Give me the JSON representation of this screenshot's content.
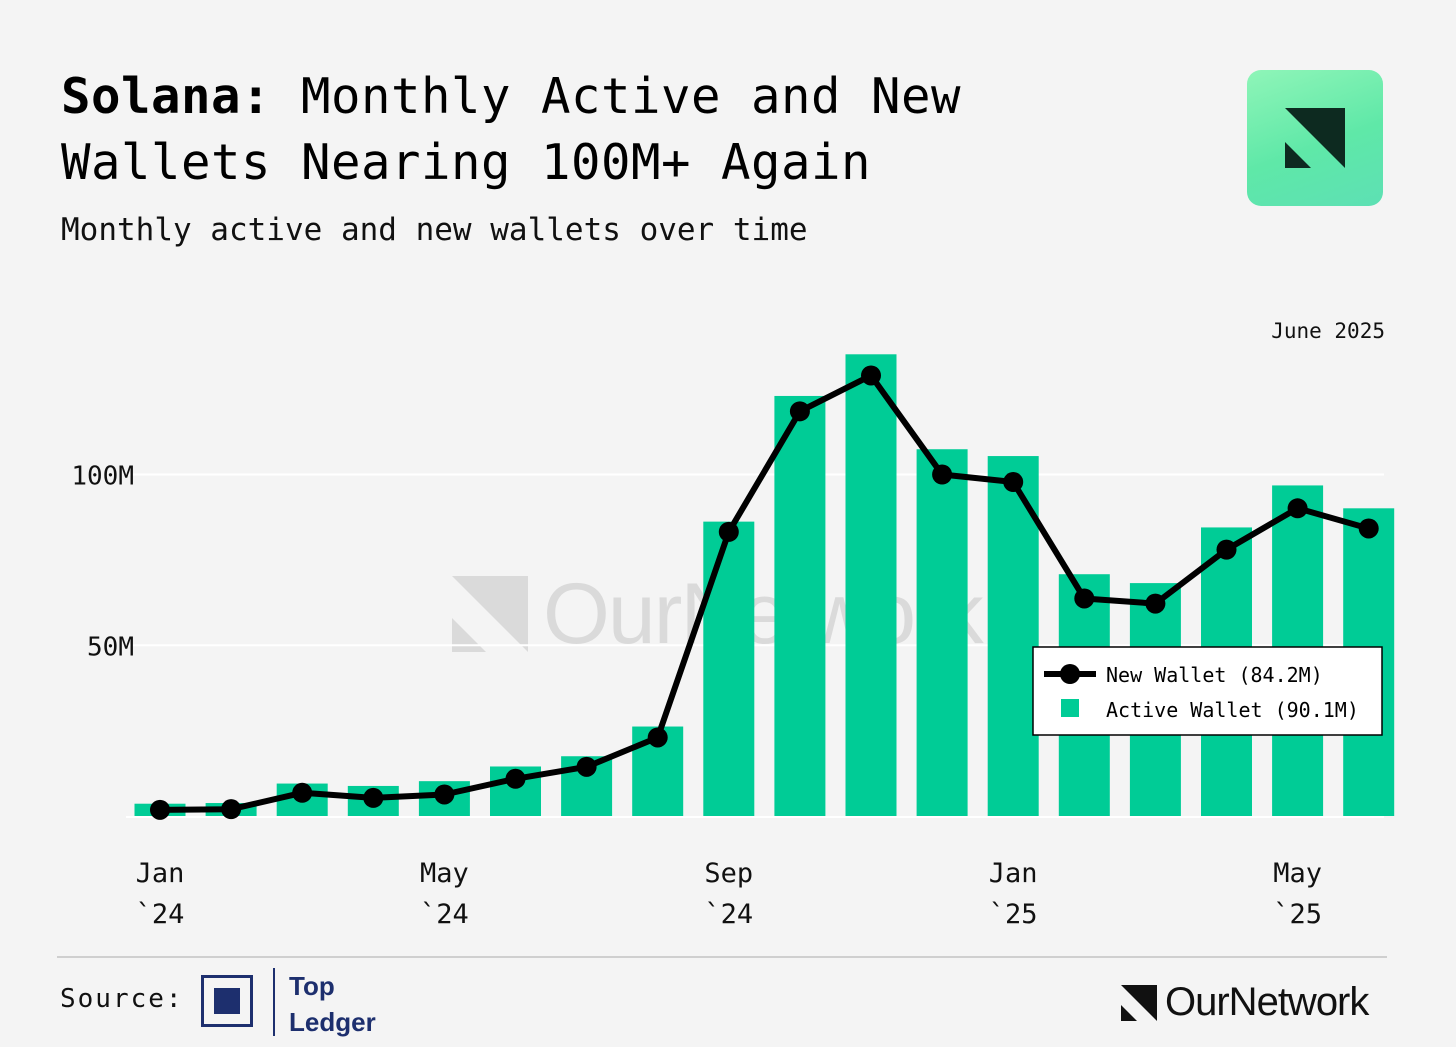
{
  "header": {
    "title_bold": "Solana:",
    "title_rest": " Monthly Active and New Wallets Nearing 100M+ Again",
    "subtitle": "Monthly active and new wallets over time"
  },
  "chart_data": {
    "type": "bar",
    "title": "Solana: Monthly Active and New Wallets Nearing 100M+ Again",
    "subtitle": "Monthly active and new wallets over time",
    "date_note": "June 2025",
    "watermark": "OurNetwork",
    "categories": [
      "Jan 2024",
      "Feb 2024",
      "Mar 2024",
      "Apr 2024",
      "May 2024",
      "Jun 2024",
      "Jul 2024",
      "Aug 2024",
      "Sep 2024",
      "Oct 2024",
      "Nov 2024",
      "Dec 2024",
      "Jan 2025",
      "Feb 2025",
      "Mar 2025",
      "Apr 2025",
      "May 2025",
      "Jun 2025"
    ],
    "x_ticks": [
      {
        "index": 0,
        "line1": "Jan",
        "line2": "`24"
      },
      {
        "index": 4,
        "line1": "May",
        "line2": "`24"
      },
      {
        "index": 8,
        "line1": "Sep",
        "line2": "`24"
      },
      {
        "index": 12,
        "line1": "Jan",
        "line2": "`25"
      },
      {
        "index": 16,
        "line1": "May",
        "line2": "`25"
      }
    ],
    "y_ticks": [
      {
        "value": 50,
        "label": "50M"
      },
      {
        "value": 100,
        "label": "100M"
      }
    ],
    "ylim": [
      0,
      140
    ],
    "grid": true,
    "unit": "M",
    "series": [
      {
        "name": "Active Wallet",
        "kind": "bar",
        "legend_label": "Active Wallet (90.1M)",
        "color": "#00cc96",
        "values": [
          3.6,
          3.8,
          9.5,
          8.8,
          10.2,
          14.5,
          17.5,
          26.2,
          86.2,
          123.0,
          135.2,
          107.4,
          105.4,
          70.8,
          68.2,
          84.5,
          96.8,
          90.1
        ]
      },
      {
        "name": "New Wallet",
        "kind": "line",
        "legend_label": "New Wallet (84.2M)",
        "color": "#000000",
        "values": [
          1.8,
          2.0,
          6.8,
          5.3,
          6.3,
          10.9,
          14.4,
          23.0,
          83.2,
          118.5,
          129.0,
          100.0,
          97.8,
          63.7,
          62.2,
          78.0,
          90.1,
          84.2
        ]
      }
    ],
    "legend_position": "center-right"
  },
  "footer": {
    "source_label": "Source:",
    "source_name_line1": "Top",
    "source_name_line2": "Ledger",
    "brand": "OurNetwork"
  }
}
